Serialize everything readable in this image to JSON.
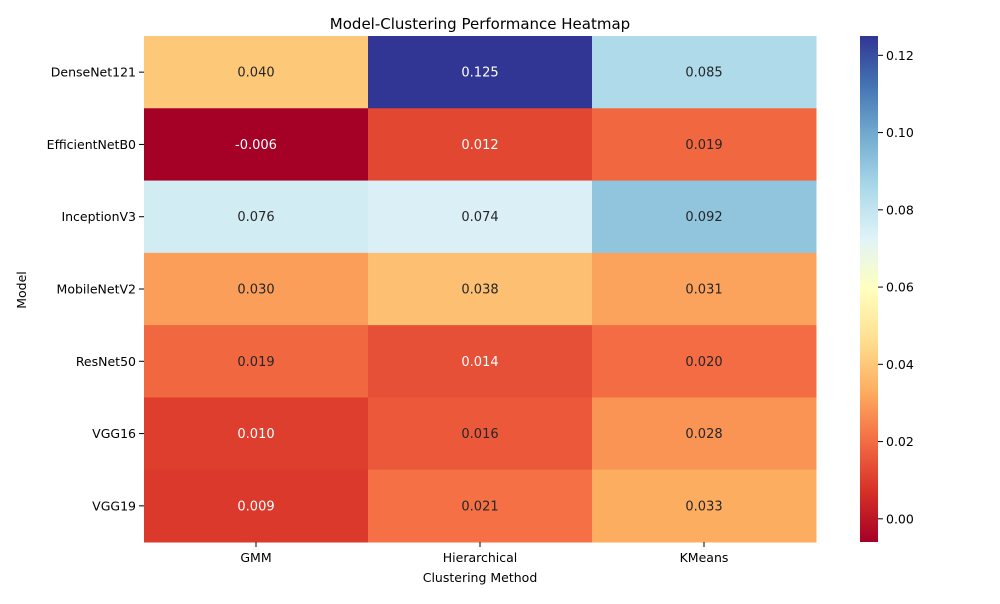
{
  "chart_data": {
    "type": "heatmap",
    "title": "Model-Clustering Performance Heatmap",
    "xlabel": "Clustering Method",
    "ylabel": "Model",
    "x_categories": [
      "GMM",
      "Hierarchical",
      "KMeans"
    ],
    "y_categories": [
      "DenseNet121",
      "EfficientNetB0",
      "InceptionV3",
      "MobileNetV2",
      "ResNet50",
      "VGG16",
      "VGG19"
    ],
    "values": [
      [
        0.04,
        0.125,
        0.085
      ],
      [
        -0.006,
        0.012,
        0.019
      ],
      [
        0.076,
        0.074,
        0.092
      ],
      [
        0.03,
        0.038,
        0.031
      ],
      [
        0.019,
        0.014,
        0.02
      ],
      [
        0.01,
        0.016,
        0.028
      ],
      [
        0.009,
        0.021,
        0.033
      ]
    ],
    "cell_labels": [
      [
        "0.040",
        "0.125",
        "0.085"
      ],
      [
        "-0.006",
        "0.012",
        "0.019"
      ],
      [
        "0.076",
        "0.074",
        "0.092"
      ],
      [
        "0.030",
        "0.038",
        "0.031"
      ],
      [
        "0.019",
        "0.014",
        "0.020"
      ],
      [
        "0.010",
        "0.016",
        "0.028"
      ],
      [
        "0.009",
        "0.021",
        "0.033"
      ]
    ],
    "colormap": "RdYlBu",
    "colormap_stops": [
      "#a50026",
      "#d73027",
      "#f46d43",
      "#fdae61",
      "#fee090",
      "#ffffbf",
      "#e0f3f8",
      "#abd9e9",
      "#74add1",
      "#4575b4",
      "#313695"
    ],
    "vmin": -0.006,
    "vmax": 0.125,
    "colorbar_ticks": [
      "0.00",
      "0.02",
      "0.04",
      "0.06",
      "0.08",
      "0.10",
      "0.12"
    ],
    "colorbar_tick_values": [
      0.0,
      0.02,
      0.04,
      0.06,
      0.08,
      0.1,
      0.12
    ]
  }
}
